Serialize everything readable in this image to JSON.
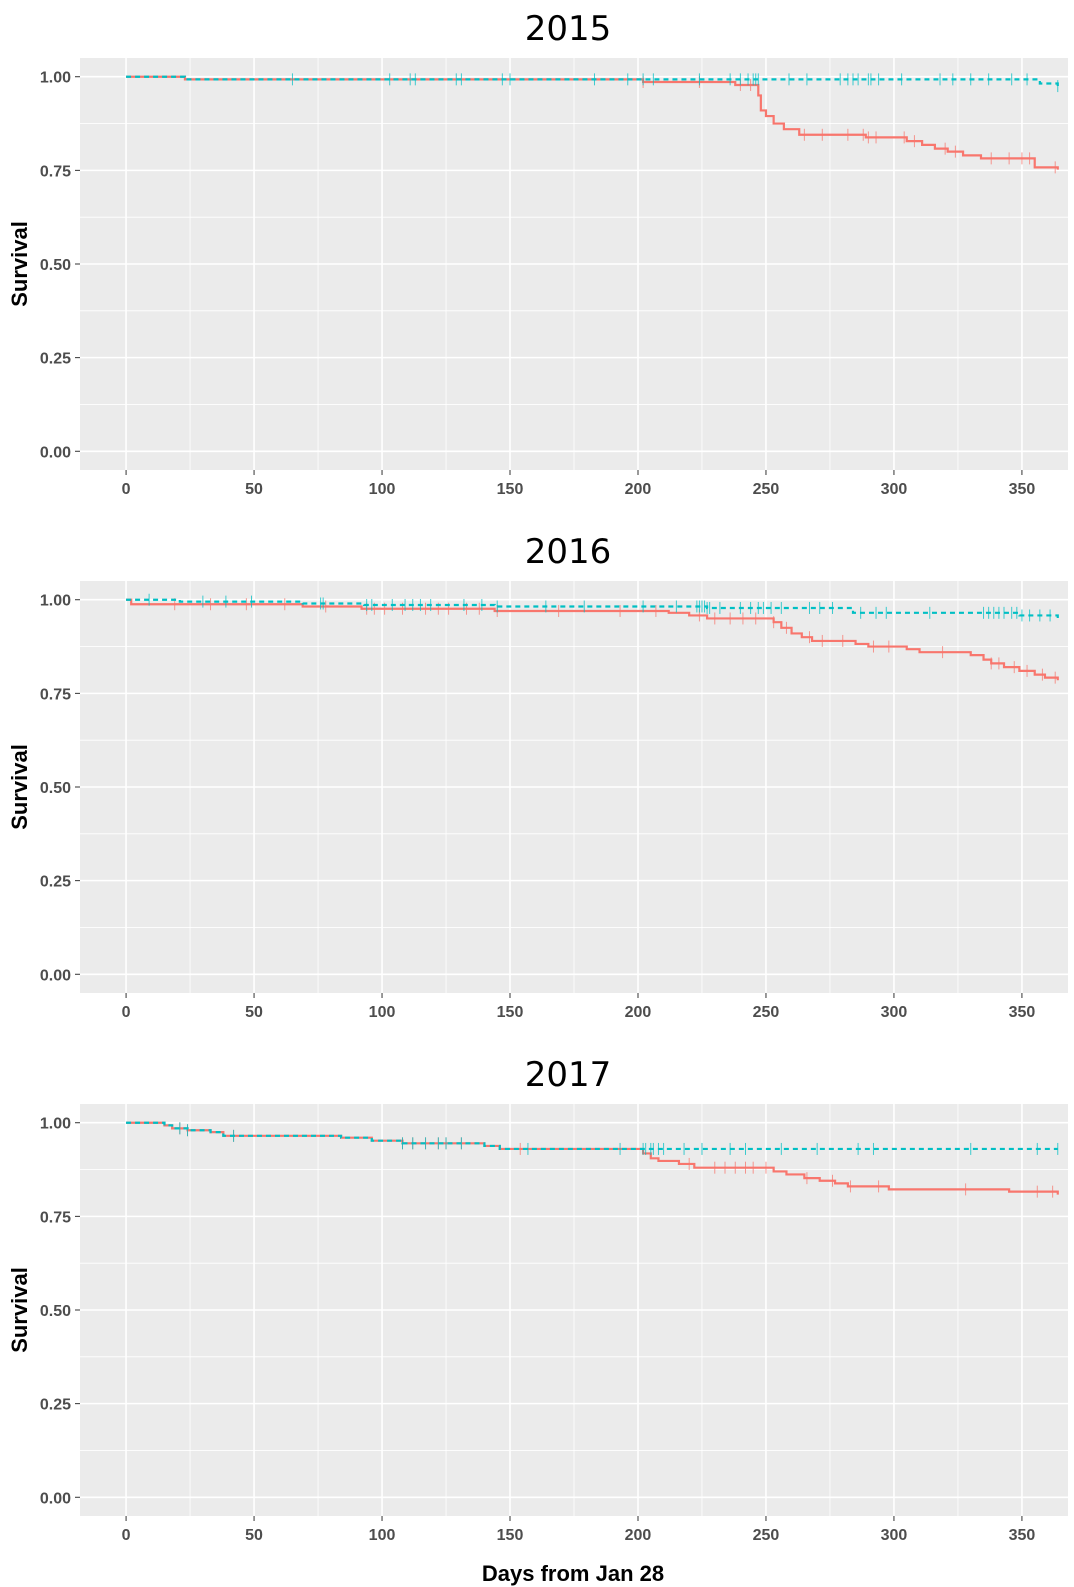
{
  "figure": {
    "xlabel": "Days from Jan 28",
    "colors": {
      "panel_background": "#ebebeb",
      "grid": "#ffffff",
      "series_solid": "#f8766d",
      "series_dashed": "#00bfc4",
      "tick_text": "#4d4d4d"
    }
  },
  "chart_data": [
    {
      "type": "line",
      "title": "2015",
      "xlabel": "",
      "ylabel": "Survival",
      "xlim": [
        -18,
        368
      ],
      "ylim": [
        -0.05,
        1.05
      ],
      "x_ticks": [
        "0",
        "50",
        "100",
        "150",
        "200",
        "250",
        "300",
        "350"
      ],
      "y_ticks": [
        "0.00",
        "0.25",
        "0.50",
        "0.75",
        "1.00"
      ],
      "grid": true,
      "step": true,
      "series": [
        {
          "style": "solid",
          "color": "#f8766d",
          "points": [
            [
              0,
              1.0
            ],
            [
              23,
              0.993
            ],
            [
              202,
              0.986
            ],
            [
              238,
              0.978
            ],
            [
              247,
              0.95
            ],
            [
              248,
              0.91
            ],
            [
              250,
              0.895
            ],
            [
              253,
              0.875
            ],
            [
              257,
              0.86
            ],
            [
              263,
              0.845
            ],
            [
              289,
              0.838
            ],
            [
              305,
              0.828
            ],
            [
              311,
              0.818
            ],
            [
              316,
              0.808
            ],
            [
              321,
              0.8
            ],
            [
              327,
              0.79
            ],
            [
              334,
              0.782
            ],
            [
              355,
              0.758
            ],
            [
              364,
              0.752
            ]
          ],
          "censor_x": [
            202,
            224,
            240,
            244,
            265,
            272,
            282,
            288,
            290,
            293,
            304,
            308,
            320,
            324,
            338,
            345,
            350,
            353,
            363
          ]
        },
        {
          "style": "dashed",
          "color": "#00bfc4",
          "points": [
            [
              0,
              1.0
            ],
            [
              23,
              0.993
            ],
            [
              357,
              0.982
            ],
            [
              364,
              0.975
            ]
          ],
          "censor_x": [
            65,
            103,
            111,
            113,
            129,
            131,
            147,
            150,
            183,
            196,
            202,
            206,
            224,
            236,
            240,
            243,
            245,
            246,
            247,
            259,
            266,
            279,
            282,
            284,
            286,
            290,
            291,
            294,
            303,
            318,
            323,
            330,
            337,
            346,
            352,
            364
          ]
        }
      ]
    },
    {
      "type": "line",
      "title": "2016",
      "xlabel": "",
      "ylabel": "Survival",
      "xlim": [
        -18,
        368
      ],
      "ylim": [
        -0.05,
        1.05
      ],
      "x_ticks": [
        "0",
        "50",
        "100",
        "150",
        "200",
        "250",
        "300",
        "350"
      ],
      "y_ticks": [
        "0.00",
        "0.25",
        "0.50",
        "0.75",
        "1.00"
      ],
      "grid": true,
      "step": true,
      "series": [
        {
          "style": "solid",
          "color": "#f8766d",
          "points": [
            [
              0,
              1.0
            ],
            [
              2,
              0.988
            ],
            [
              69,
              0.982
            ],
            [
              92,
              0.976
            ],
            [
              144,
              0.97
            ],
            [
              212,
              0.965
            ],
            [
              220,
              0.958
            ],
            [
              227,
              0.95
            ],
            [
              253,
              0.94
            ],
            [
              256,
              0.925
            ],
            [
              260,
              0.91
            ],
            [
              264,
              0.9
            ],
            [
              268,
              0.89
            ],
            [
              285,
              0.882
            ],
            [
              290,
              0.875
            ],
            [
              305,
              0.868
            ],
            [
              310,
              0.86
            ],
            [
              330,
              0.852
            ],
            [
              335,
              0.84
            ],
            [
              338,
              0.83
            ],
            [
              343,
              0.82
            ],
            [
              349,
              0.81
            ],
            [
              355,
              0.8
            ],
            [
              359,
              0.792
            ],
            [
              364,
              0.785
            ]
          ],
          "censor_x": [
            19,
            33,
            47,
            62,
            78,
            94,
            97,
            101,
            108,
            117,
            122,
            126,
            133,
            138,
            145,
            169,
            193,
            207,
            224,
            230,
            236,
            241,
            246,
            253,
            258,
            267,
            272,
            280,
            292,
            298,
            319,
            338,
            341,
            347,
            352,
            358,
            363
          ]
        },
        {
          "style": "dashed",
          "color": "#00bfc4",
          "points": [
            [
              0,
              1.0
            ],
            [
              21,
              0.995
            ],
            [
              69,
              0.99
            ],
            [
              93,
              0.986
            ],
            [
              144,
              0.982
            ],
            [
              227,
              0.978
            ],
            [
              284,
              0.965
            ],
            [
              349,
              0.958
            ],
            [
              364,
              0.95
            ]
          ],
          "censor_x": [
            9,
            30,
            39,
            49,
            76,
            77,
            94,
            96,
            104,
            109,
            112,
            115,
            119,
            132,
            139,
            145,
            164,
            179,
            202,
            215,
            223,
            224,
            225,
            226,
            227,
            228,
            232,
            240,
            244,
            247,
            249,
            252,
            256,
            267,
            271,
            276,
            287,
            293,
            297,
            314,
            335,
            337,
            339,
            341,
            343,
            346,
            348,
            350,
            353,
            357,
            361
          ]
        }
      ]
    },
    {
      "type": "line",
      "title": "2017",
      "xlabel": "Days from Jan 28",
      "ylabel": "Survival",
      "xlim": [
        -18,
        368
      ],
      "ylim": [
        -0.05,
        1.05
      ],
      "x_ticks": [
        "0",
        "50",
        "100",
        "150",
        "200",
        "250",
        "300",
        "350"
      ],
      "y_ticks": [
        "0.00",
        "0.25",
        "0.50",
        "0.75",
        "1.00"
      ],
      "grid": true,
      "step": true,
      "series": [
        {
          "style": "solid",
          "color": "#f8766d",
          "points": [
            [
              0,
              1.0
            ],
            [
              15,
              0.993
            ],
            [
              18,
              0.985
            ],
            [
              24,
              0.98
            ],
            [
              33,
              0.975
            ],
            [
              38,
              0.965
            ],
            [
              84,
              0.96
            ],
            [
              96,
              0.952
            ],
            [
              108,
              0.945
            ],
            [
              140,
              0.938
            ],
            [
              146,
              0.93
            ],
            [
              202,
              0.918
            ],
            [
              205,
              0.905
            ],
            [
              208,
              0.898
            ],
            [
              216,
              0.89
            ],
            [
              222,
              0.88
            ],
            [
              253,
              0.87
            ],
            [
              258,
              0.862
            ],
            [
              265,
              0.852
            ],
            [
              271,
              0.845
            ],
            [
              277,
              0.838
            ],
            [
              282,
              0.83
            ],
            [
              298,
              0.822
            ],
            [
              345,
              0.816
            ],
            [
              364,
              0.808
            ]
          ],
          "censor_x": [
            21,
            24,
            42,
            108,
            112,
            117,
            122,
            125,
            131,
            154,
            220,
            230,
            234,
            238,
            242,
            245,
            250,
            266,
            276,
            283,
            294,
            328,
            356,
            362
          ]
        },
        {
          "style": "dashed",
          "color": "#00bfc4",
          "points": [
            [
              0,
              1.0
            ],
            [
              15,
              0.993
            ],
            [
              18,
              0.985
            ],
            [
              24,
              0.98
            ],
            [
              33,
              0.975
            ],
            [
              38,
              0.965
            ],
            [
              84,
              0.96
            ],
            [
              96,
              0.952
            ],
            [
              108,
              0.945
            ],
            [
              140,
              0.938
            ],
            [
              146,
              0.93
            ],
            [
              364,
              0.93
            ]
          ],
          "censor_x": [
            21,
            24,
            42,
            108,
            112,
            117,
            122,
            125,
            131,
            157,
            193,
            202,
            203,
            205,
            206,
            208,
            210,
            218,
            225,
            236,
            242,
            256,
            270,
            286,
            292,
            330,
            356,
            364
          ]
        }
      ]
    }
  ]
}
